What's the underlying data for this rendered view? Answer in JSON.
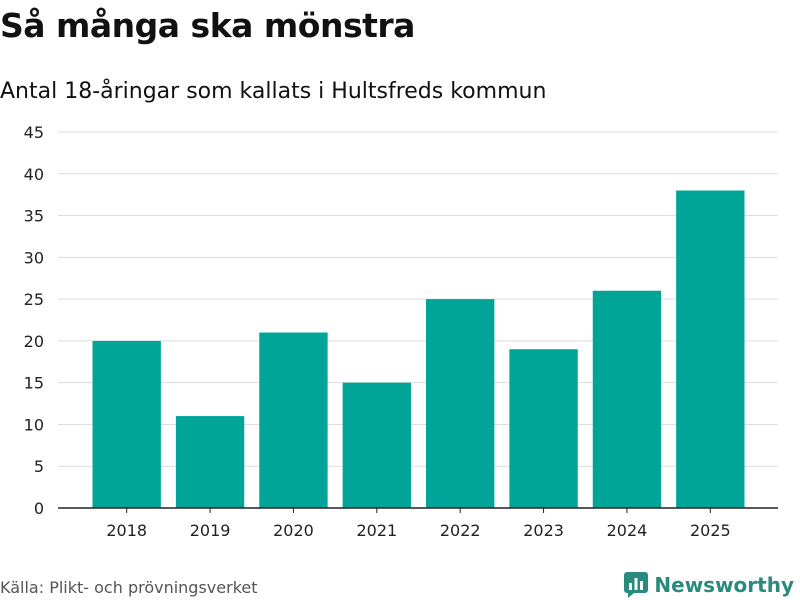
{
  "title": "Så många ska mönstra",
  "subtitle": "Antal 18-åringar som kallats i Hultsfreds kommun",
  "source": "Källa: Plikt- och prövningsverket",
  "brand": "Newsworthy",
  "colors": {
    "bar": "#00a597",
    "grid": "#dddddd",
    "axis": "#222222",
    "brand": "#2a8a7e"
  },
  "chart_data": {
    "type": "bar",
    "categories": [
      "2018",
      "2019",
      "2020",
      "2021",
      "2022",
      "2023",
      "2024",
      "2025"
    ],
    "values": [
      20,
      11,
      21,
      15,
      25,
      19,
      26,
      38
    ],
    "ylim": [
      0,
      45
    ],
    "yticks": [
      0,
      5,
      10,
      15,
      20,
      25,
      30,
      35,
      40,
      45
    ],
    "xlabel": "",
    "ylabel": "",
    "grid": true
  }
}
